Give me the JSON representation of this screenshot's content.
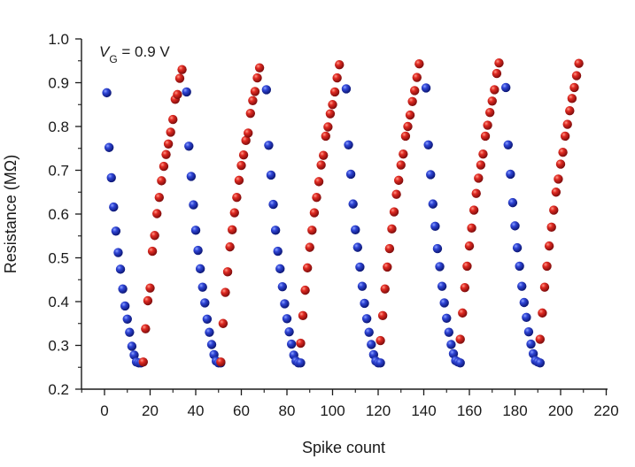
{
  "chart_data": {
    "type": "scatter",
    "xlabel": "Spike count",
    "ylabel": "Resistance (MΩ)",
    "annotation": {
      "main": "V",
      "subscript": "G",
      "rest": " = 0.9 V"
    },
    "xlim": [
      -10,
      220
    ],
    "ylim": [
      0.2,
      1.0
    ],
    "x_ticks": [
      0,
      20,
      40,
      60,
      80,
      100,
      120,
      140,
      160,
      180,
      200,
      220
    ],
    "x_tick_labels": [
      "0",
      "20",
      "40",
      "60",
      "80",
      "100",
      "120",
      "140",
      "160",
      "180",
      "200",
      "220"
    ],
    "y_ticks": [
      0.2,
      0.3,
      0.4,
      0.5,
      0.6,
      0.7,
      0.8,
      0.9,
      1.0
    ],
    "y_tick_labels": [
      "0.2",
      "0.3",
      "0.4",
      "0.5",
      "0.6",
      "0.7",
      "0.8",
      "0.9",
      "1.0"
    ],
    "grid": false,
    "series": [
      {
        "color": "#1f2fb0",
        "points": [
          [
            1,
            0.877
          ],
          [
            2,
            0.752
          ],
          [
            3,
            0.683
          ],
          [
            4,
            0.616
          ],
          [
            5,
            0.561
          ],
          [
            6,
            0.512
          ],
          [
            7,
            0.474
          ],
          [
            8,
            0.429
          ],
          [
            9,
            0.39
          ],
          [
            10,
            0.36
          ],
          [
            11,
            0.33
          ],
          [
            12,
            0.298
          ],
          [
            13,
            0.278
          ],
          [
            14,
            0.262
          ],
          [
            15,
            0.26
          ],
          [
            16,
            0.26
          ],
          [
            36,
            0.879
          ],
          [
            37,
            0.755
          ],
          [
            38,
            0.686
          ],
          [
            39,
            0.621
          ],
          [
            40,
            0.563
          ],
          [
            41,
            0.517
          ],
          [
            42,
            0.475
          ],
          [
            43,
            0.433
          ],
          [
            44,
            0.397
          ],
          [
            45,
            0.36
          ],
          [
            46,
            0.33
          ],
          [
            47,
            0.302
          ],
          [
            48,
            0.279
          ],
          [
            49,
            0.264
          ],
          [
            50,
            0.26
          ],
          [
            51,
            0.26
          ],
          [
            71,
            0.884
          ],
          [
            72,
            0.757
          ],
          [
            73,
            0.689
          ],
          [
            74,
            0.622
          ],
          [
            75,
            0.563
          ],
          [
            76,
            0.515
          ],
          [
            77,
            0.475
          ],
          [
            78,
            0.434
          ],
          [
            79,
            0.395
          ],
          [
            80,
            0.361
          ],
          [
            81,
            0.331
          ],
          [
            82,
            0.303
          ],
          [
            83,
            0.278
          ],
          [
            84,
            0.264
          ],
          [
            85,
            0.26
          ],
          [
            86,
            0.26
          ],
          [
            106,
            0.886
          ],
          [
            107,
            0.758
          ],
          [
            108,
            0.691
          ],
          [
            109,
            0.623
          ],
          [
            110,
            0.564
          ],
          [
            111,
            0.524
          ],
          [
            112,
            0.479
          ],
          [
            113,
            0.435
          ],
          [
            114,
            0.396
          ],
          [
            115,
            0.361
          ],
          [
            116,
            0.33
          ],
          [
            117,
            0.302
          ],
          [
            118,
            0.279
          ],
          [
            119,
            0.264
          ],
          [
            120,
            0.26
          ],
          [
            121,
            0.26
          ],
          [
            141,
            0.888
          ],
          [
            142,
            0.758
          ],
          [
            143,
            0.69
          ],
          [
            144,
            0.623
          ],
          [
            145,
            0.572
          ],
          [
            146,
            0.521
          ],
          [
            147,
            0.48
          ],
          [
            148,
            0.435
          ],
          [
            149,
            0.397
          ],
          [
            150,
            0.362
          ],
          [
            151,
            0.33
          ],
          [
            152,
            0.302
          ],
          [
            153,
            0.281
          ],
          [
            154,
            0.265
          ],
          [
            155,
            0.262
          ],
          [
            156,
            0.26
          ],
          [
            176,
            0.889
          ],
          [
            177,
            0.758
          ],
          [
            178,
            0.691
          ],
          [
            179,
            0.626
          ],
          [
            180,
            0.573
          ],
          [
            181,
            0.523
          ],
          [
            182,
            0.481
          ],
          [
            183,
            0.435
          ],
          [
            184,
            0.398
          ],
          [
            185,
            0.364
          ],
          [
            186,
            0.331
          ],
          [
            187,
            0.303
          ],
          [
            188,
            0.281
          ],
          [
            189,
            0.265
          ],
          [
            190,
            0.262
          ],
          [
            191,
            0.26
          ]
        ]
      },
      {
        "color": "#d21e1e",
        "points": [
          [
            17,
            0.262
          ],
          [
            18,
            0.338
          ],
          [
            19,
            0.402
          ],
          [
            20,
            0.431
          ],
          [
            21,
            0.515
          ],
          [
            22,
            0.551
          ],
          [
            23,
            0.601
          ],
          [
            24,
            0.638
          ],
          [
            25,
            0.676
          ],
          [
            26,
            0.709
          ],
          [
            27,
            0.736
          ],
          [
            28,
            0.76
          ],
          [
            29,
            0.787
          ],
          [
            30,
            0.816
          ],
          [
            31,
            0.862
          ],
          [
            32,
            0.873
          ],
          [
            33,
            0.91
          ],
          [
            34,
            0.93
          ],
          [
            51,
            0.262
          ],
          [
            52,
            0.35
          ],
          [
            53,
            0.421
          ],
          [
            54,
            0.468
          ],
          [
            55,
            0.525
          ],
          [
            56,
            0.564
          ],
          [
            57,
            0.603
          ],
          [
            58,
            0.638
          ],
          [
            59,
            0.677
          ],
          [
            60,
            0.711
          ],
          [
            61,
            0.735
          ],
          [
            62,
            0.768
          ],
          [
            63,
            0.785
          ],
          [
            64,
            0.83
          ],
          [
            65,
            0.859
          ],
          [
            66,
            0.88
          ],
          [
            67,
            0.911
          ],
          [
            68,
            0.934
          ],
          [
            86,
            0.305
          ],
          [
            87,
            0.368
          ],
          [
            88,
            0.426
          ],
          [
            89,
            0.477
          ],
          [
            90,
            0.524
          ],
          [
            91,
            0.563
          ],
          [
            92,
            0.603
          ],
          [
            93,
            0.638
          ],
          [
            94,
            0.674
          ],
          [
            95,
            0.712
          ],
          [
            96,
            0.734
          ],
          [
            97,
            0.778
          ],
          [
            98,
            0.799
          ],
          [
            99,
            0.829
          ],
          [
            100,
            0.85
          ],
          [
            101,
            0.879
          ],
          [
            102,
            0.911
          ],
          [
            103,
            0.941
          ],
          [
            121,
            0.311
          ],
          [
            122,
            0.368
          ],
          [
            123,
            0.429
          ],
          [
            124,
            0.479
          ],
          [
            125,
            0.521
          ],
          [
            126,
            0.566
          ],
          [
            127,
            0.605
          ],
          [
            128,
            0.645
          ],
          [
            129,
            0.677
          ],
          [
            130,
            0.712
          ],
          [
            131,
            0.737
          ],
          [
            132,
            0.778
          ],
          [
            133,
            0.8
          ],
          [
            134,
            0.826
          ],
          [
            135,
            0.857
          ],
          [
            136,
            0.882
          ],
          [
            137,
            0.912
          ],
          [
            138,
            0.943
          ],
          [
            156,
            0.314
          ],
          [
            157,
            0.374
          ],
          [
            158,
            0.432
          ],
          [
            159,
            0.481
          ],
          [
            160,
            0.527
          ],
          [
            161,
            0.568
          ],
          [
            162,
            0.609
          ],
          [
            163,
            0.647
          ],
          [
            164,
            0.682
          ],
          [
            165,
            0.712
          ],
          [
            166,
            0.737
          ],
          [
            167,
            0.778
          ],
          [
            168,
            0.803
          ],
          [
            169,
            0.832
          ],
          [
            170,
            0.858
          ],
          [
            171,
            0.884
          ],
          [
            172,
            0.921
          ],
          [
            173,
            0.945
          ],
          [
            191,
            0.314
          ],
          [
            192,
            0.374
          ],
          [
            193,
            0.433
          ],
          [
            194,
            0.481
          ],
          [
            195,
            0.527
          ],
          [
            196,
            0.57
          ],
          [
            197,
            0.609
          ],
          [
            198,
            0.65
          ],
          [
            199,
            0.68
          ],
          [
            200,
            0.714
          ],
          [
            201,
            0.741
          ],
          [
            202,
            0.778
          ],
          [
            203,
            0.805
          ],
          [
            204,
            0.836
          ],
          [
            205,
            0.864
          ],
          [
            206,
            0.889
          ],
          [
            207,
            0.916
          ],
          [
            208,
            0.944
          ]
        ]
      }
    ]
  }
}
